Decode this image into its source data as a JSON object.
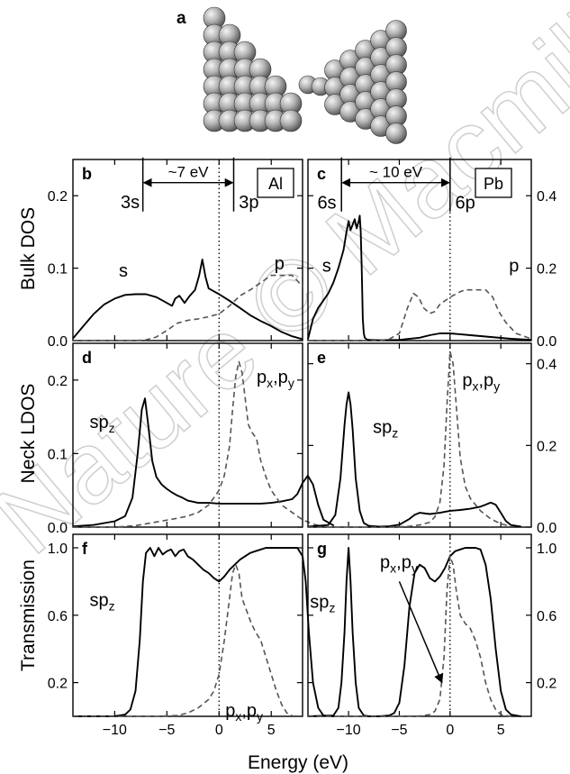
{
  "watermark": "Nature © Macmillan",
  "structure_panel": {
    "label": "a"
  },
  "shared": {
    "xlabel": "Energy (eV)",
    "xticks": [
      -10,
      -5,
      0,
      5
    ],
    "xlim": [
      -14,
      8
    ],
    "row_labels": [
      "Bulk  DOS",
      "Neck  LDOS",
      "Transmission"
    ],
    "colors": {
      "solid": "#000000",
      "dashed": "#555555",
      "fermi": "#000000"
    }
  },
  "chart_data": [
    {
      "panel": "b",
      "type": "line",
      "row": 0,
      "col": 0,
      "ylim": [
        0,
        0.25
      ],
      "yticks": [
        0.0,
        0.1,
        0.2
      ],
      "yticklabels": [
        "0.0",
        "0.1",
        "0.2"
      ],
      "ytick_side": "left",
      "legend_box": "Al",
      "series": [
        {
          "name": "s",
          "style": "solid",
          "x": [
            -14,
            -13,
            -12,
            -11,
            -10,
            -9,
            -8,
            -7,
            -6,
            -5,
            -4.5,
            -4.2,
            -3.8,
            -3.3,
            -2.8,
            -2.3,
            -1.9,
            -1.6,
            -1.3,
            -1,
            -0.5,
            0,
            1,
            2,
            3,
            4,
            5,
            6,
            7,
            8
          ],
          "y": [
            0.003,
            0.02,
            0.037,
            0.05,
            0.058,
            0.063,
            0.064,
            0.064,
            0.06,
            0.052,
            0.048,
            0.058,
            0.062,
            0.052,
            0.062,
            0.07,
            0.09,
            0.112,
            0.088,
            0.072,
            0.068,
            0.064,
            0.055,
            0.045,
            0.035,
            0.027,
            0.02,
            0.012,
            0.006,
            0.002
          ]
        },
        {
          "name": "p",
          "style": "dashed",
          "x": [
            -14,
            -8,
            -7,
            -6,
            -5,
            -4,
            -3,
            -2,
            -1,
            0,
            1,
            2,
            3,
            4,
            5,
            6,
            7,
            8
          ],
          "y": [
            0,
            0,
            0.001,
            0.005,
            0.014,
            0.024,
            0.028,
            0.03,
            0.033,
            0.037,
            0.048,
            0.062,
            0.07,
            0.08,
            0.09,
            0.09,
            0.09,
            0.075
          ]
        }
      ],
      "annotations": [
        {
          "text": "s",
          "x": -9.6,
          "y": 0.088
        },
        {
          "text": "p",
          "x": 5.3,
          "y": 0.098
        },
        {
          "text": "3s",
          "x": -7.6,
          "y": 0.183,
          "anchor": "end"
        },
        {
          "text": "3p",
          "x": 1.9,
          "y": 0.183,
          "anchor": "start"
        }
      ],
      "range_arrow": {
        "label": "~7 eV",
        "x1": -7.3,
        "x2": 1.4,
        "y": 0.218
      }
    },
    {
      "panel": "c",
      "type": "line",
      "row": 0,
      "col": 1,
      "ylim": [
        0,
        0.5
      ],
      "yticks": [
        0.0,
        0.2,
        0.4
      ],
      "yticklabels": [
        "0.0",
        "0.2",
        "0.4"
      ],
      "ytick_side": "right",
      "legend_box": "Pb",
      "series": [
        {
          "name": "s",
          "style": "solid",
          "x": [
            -14,
            -13.5,
            -13,
            -12.5,
            -12,
            -11.5,
            -11,
            -10.5,
            -10.2,
            -10,
            -9.8,
            -9.6,
            -9.4,
            -9.2,
            -9.0,
            -8.9,
            -8.8,
            -8.7,
            -8.6,
            -8.5,
            -8.4,
            -8.3,
            -8.2,
            -8,
            -7,
            -5,
            -3,
            -2,
            -1,
            0,
            2,
            4,
            6,
            8
          ],
          "y": [
            0.004,
            0.06,
            0.09,
            0.11,
            0.13,
            0.16,
            0.2,
            0.25,
            0.3,
            0.33,
            0.305,
            0.32,
            0.335,
            0.31,
            0.33,
            0.345,
            0.3,
            0.2,
            0.06,
            0.02,
            0.008,
            0.005,
            0.003,
            0.002,
            0.001,
            0.002,
            0.008,
            0.015,
            0.02,
            0.02,
            0.015,
            0.01,
            0.005,
            0.002
          ]
        },
        {
          "name": "p",
          "style": "dashed",
          "x": [
            -14,
            -7,
            -6,
            -5,
            -4.2,
            -3.6,
            -3.1,
            -2.6,
            -2,
            -1.5,
            -1,
            0,
            1,
            1.5,
            2.5,
            3.5,
            4.2,
            4.8,
            5.5,
            6.5,
            8
          ],
          "y": [
            0,
            0,
            0.004,
            0.02,
            0.09,
            0.13,
            0.12,
            0.09,
            0.075,
            0.08,
            0.1,
            0.12,
            0.135,
            0.14,
            0.14,
            0.14,
            0.12,
            0.08,
            0.05,
            0.02,
            0.005
          ]
        }
      ],
      "annotations": [
        {
          "text": "s",
          "x": -12.6,
          "y": 0.19
        },
        {
          "text": "p",
          "x": 5.8,
          "y": 0.19
        },
        {
          "text": "6s",
          "x": -11.2,
          "y": 0.365,
          "anchor": "end"
        },
        {
          "text": "6p",
          "x": 0.5,
          "y": 0.365,
          "anchor": "start"
        }
      ],
      "range_arrow": {
        "label": "~ 10 eV",
        "x1": -10.7,
        "x2": 0,
        "y": 0.436
      }
    },
    {
      "panel": "d",
      "type": "line",
      "row": 1,
      "col": 0,
      "ylim": [
        0,
        0.25
      ],
      "yticks": [
        0.0,
        0.1,
        0.2
      ],
      "yticklabels": [
        "0.0",
        "0.1",
        "0.2"
      ],
      "ytick_side": "left",
      "series": [
        {
          "name": "sp_z",
          "style": "solid",
          "x": [
            -14,
            -12,
            -10,
            -9,
            -8.3,
            -7.8,
            -7.4,
            -7.1,
            -6.8,
            -6.4,
            -6,
            -5.5,
            -5,
            -4.5,
            -4,
            -3.5,
            -3,
            -2,
            -1,
            0,
            1,
            2,
            3,
            4,
            5,
            6,
            7,
            7.5,
            8,
            8.5,
            9,
            9.5,
            10,
            11
          ],
          "y": [
            0.001,
            0.003,
            0.008,
            0.015,
            0.04,
            0.1,
            0.16,
            0.175,
            0.14,
            0.09,
            0.068,
            0.058,
            0.052,
            0.047,
            0.043,
            0.04,
            0.036,
            0.033,
            0.033,
            0.032,
            0.032,
            0.032,
            0.032,
            0.032,
            0.033,
            0.035,
            0.038,
            0.045,
            0.06,
            0.07,
            0.058,
            0.03,
            0.01,
            0.002
          ]
        },
        {
          "name": "p_x,p_y",
          "style": "dashed",
          "x": [
            -14,
            -10,
            -8,
            -6,
            -4,
            -3,
            -2,
            -1,
            0,
            0.5,
            1,
            1.3,
            1.6,
            1.9,
            2.2,
            2.5,
            2.8,
            3.1,
            3.6,
            4,
            4.5,
            5,
            5.5,
            6,
            7,
            8,
            9,
            10
          ],
          "y": [
            0,
            0,
            0.002,
            0.007,
            0.012,
            0.015,
            0.02,
            0.03,
            0.05,
            0.07,
            0.11,
            0.16,
            0.205,
            0.225,
            0.21,
            0.175,
            0.14,
            0.13,
            0.12,
            0.09,
            0.068,
            0.05,
            0.04,
            0.03,
            0.02,
            0.01,
            0.004,
            0.001
          ]
        }
      ],
      "annotations": [
        {
          "text": "sp",
          "sub": "z",
          "x": -12.4,
          "y": 0.135
        },
        {
          "text": "p",
          "sub": "x",
          "tail": ",p",
          "sub2": "y",
          "x": 3.6,
          "y": 0.196
        }
      ]
    },
    {
      "panel": "e",
      "type": "line",
      "row": 1,
      "col": 1,
      "ylim": [
        0,
        0.45
      ],
      "yticks": [
        0.0,
        0.2,
        0.4
      ],
      "yticklabels": [
        "0.0",
        "0.2",
        "0.4"
      ],
      "ytick_side": "right",
      "series": [
        {
          "name": "sp_z",
          "style": "solid",
          "x": [
            -14,
            -12,
            -11.3,
            -10.8,
            -10.4,
            -10.2,
            -10,
            -9.8,
            -9.6,
            -9.3,
            -8.9,
            -8.5,
            -8,
            -7,
            -6,
            -5,
            -4,
            -3.5,
            -3,
            -2,
            -1,
            0,
            1,
            2,
            3,
            3.5,
            4,
            4.5,
            5,
            5.5,
            6,
            7
          ],
          "y": [
            0.001,
            0.005,
            0.03,
            0.12,
            0.25,
            0.3,
            0.33,
            0.3,
            0.24,
            0.12,
            0.04,
            0.01,
            0.003,
            0.001,
            0.002,
            0.006,
            0.02,
            0.03,
            0.035,
            0.032,
            0.035,
            0.04,
            0.042,
            0.045,
            0.05,
            0.055,
            0.06,
            0.055,
            0.035,
            0.015,
            0.005,
            0.001
          ]
        },
        {
          "name": "p_x,p_y",
          "style": "dashed",
          "x": [
            -14,
            -6,
            -4,
            -3,
            -2,
            -1.5,
            -1,
            -0.6,
            -0.3,
            0,
            0.3,
            0.6,
            1,
            1.5,
            2,
            2.5,
            3,
            4,
            5,
            6
          ],
          "y": [
            0,
            0,
            0.002,
            0.005,
            0.012,
            0.025,
            0.06,
            0.15,
            0.3,
            0.43,
            0.4,
            0.3,
            0.17,
            0.1,
            0.07,
            0.055,
            0.04,
            0.02,
            0.008,
            0.002
          ]
        }
      ],
      "annotations": [
        {
          "text": "sp",
          "sub": "z",
          "x": -7.6,
          "y": 0.23
        },
        {
          "text": "p",
          "sub": "x",
          "tail": ",p",
          "sub2": "y",
          "x": 1.2,
          "y": 0.345
        }
      ]
    },
    {
      "panel": "f",
      "type": "line",
      "row": 2,
      "col": 0,
      "ylim": [
        0,
        1.08
      ],
      "yticks": [
        0.2,
        0.6,
        1.0
      ],
      "yticklabels": [
        "0.2",
        "0.6",
        "1.0"
      ],
      "ytick_side": "left",
      "series": [
        {
          "name": "sp_z",
          "style": "solid",
          "x": [
            -14,
            -10,
            -9,
            -8.5,
            -8,
            -7.6,
            -7.3,
            -7,
            -6.6,
            -6.2,
            -5.8,
            -5.4,
            -5,
            -4.6,
            -4.2,
            -3.8,
            -3.4,
            -3,
            -2.5,
            -2,
            -1.5,
            -1,
            -0.5,
            0,
            0.5,
            1,
            1.5,
            2,
            2.5,
            3,
            3.5,
            4,
            4.5,
            5,
            5.5,
            6,
            6.5,
            7,
            7.5,
            8,
            8.3,
            8.6,
            9,
            9.5,
            10,
            11
          ],
          "y": [
            0.0,
            0.001,
            0.01,
            0.04,
            0.15,
            0.45,
            0.8,
            0.97,
            1.0,
            0.95,
            1.0,
            0.96,
            0.98,
            0.99,
            0.95,
            0.98,
            0.99,
            0.95,
            0.93,
            0.9,
            0.87,
            0.85,
            0.82,
            0.8,
            0.83,
            0.87,
            0.9,
            0.93,
            0.95,
            0.97,
            0.98,
            0.99,
            1.0,
            1.0,
            1.0,
            1.0,
            1.0,
            1.0,
            1.0,
            0.95,
            0.8,
            0.5,
            0.2,
            0.05,
            0.005,
            0.0
          ]
        },
        {
          "name": "p_x,p_y",
          "style": "dashed",
          "x": [
            -14,
            -6,
            -4,
            -3,
            -2,
            -1,
            -0.5,
            0,
            0.5,
            1,
            1.3,
            1.6,
            1.9,
            2.2,
            2.5,
            2.8,
            3.1,
            3.5,
            4,
            4.5,
            5,
            5.5,
            6,
            6.5,
            7
          ],
          "y": [
            0,
            0,
            0.005,
            0.02,
            0.05,
            0.1,
            0.15,
            0.25,
            0.45,
            0.7,
            0.85,
            0.9,
            0.85,
            0.7,
            0.65,
            0.6,
            0.55,
            0.5,
            0.45,
            0.35,
            0.25,
            0.15,
            0.07,
            0.02,
            0.005
          ]
        }
      ],
      "annotations": [
        {
          "text": "sp",
          "sub": "z",
          "x": -12.4,
          "y": 0.655
        },
        {
          "text": "p",
          "sub": "x",
          "tail": ",p",
          "sub2": "y",
          "x": 0.6,
          "y": 0.0
        }
      ]
    },
    {
      "panel": "g",
      "type": "line",
      "row": 2,
      "col": 1,
      "ylim": [
        0,
        1.08
      ],
      "yticks": [
        0.2,
        0.6,
        1.0
      ],
      "yticklabels": [
        "0.2",
        "0.6",
        "1.0"
      ],
      "ytick_side": "right",
      "series": [
        {
          "name": "sp_z",
          "style": "solid",
          "x": [
            -14,
            -11.5,
            -11,
            -10.7,
            -10.4,
            -10.2,
            -10,
            -9.8,
            -9.6,
            -9.3,
            -9,
            -8.5,
            -8,
            -7,
            -6,
            -5.5,
            -5,
            -4.5,
            -4,
            -3.5,
            -3,
            -2.5,
            -2,
            -1.5,
            -1,
            -0.5,
            0,
            0.5,
            1,
            1.5,
            2,
            2.5,
            3,
            3.5,
            4,
            4.5,
            5,
            5.5,
            6,
            7
          ],
          "y": [
            0,
            0.005,
            0.05,
            0.2,
            0.5,
            0.8,
            1.0,
            0.8,
            0.5,
            0.2,
            0.05,
            0.005,
            0.0,
            0.0,
            0.005,
            0.02,
            0.08,
            0.3,
            0.65,
            0.85,
            0.9,
            0.88,
            0.82,
            0.8,
            0.83,
            0.88,
            0.95,
            0.98,
            0.99,
            1.0,
            1.0,
            1.0,
            0.99,
            0.9,
            0.7,
            0.4,
            0.15,
            0.04,
            0.01,
            0.0
          ]
        },
        {
          "name": "p_x,p_y",
          "style": "dashed",
          "x": [
            -14,
            -6,
            -3,
            -2,
            -1.5,
            -1,
            -0.6,
            -0.3,
            0,
            0.3,
            0.6,
            1,
            1.5,
            2,
            2.5,
            3,
            3.5,
            4,
            4.5,
            5,
            6
          ],
          "y": [
            0,
            0,
            0.002,
            0.01,
            0.03,
            0.1,
            0.35,
            0.75,
            0.95,
            0.9,
            0.75,
            0.6,
            0.55,
            0.52,
            0.45,
            0.35,
            0.2,
            0.1,
            0.04,
            0.01,
            0.0
          ]
        }
      ],
      "annotations": [
        {
          "text": "sp",
          "sub": "z",
          "x": -13.8,
          "y": 0.645
        },
        {
          "text": "p",
          "sub": "x",
          "tail": ",p",
          "sub2": "y",
          "x": -6.9,
          "y": 0.88
        }
      ],
      "arrow": {
        "from": [
          -5.0,
          0.8
        ],
        "to": [
          -0.8,
          0.2
        ]
      }
    }
  ]
}
